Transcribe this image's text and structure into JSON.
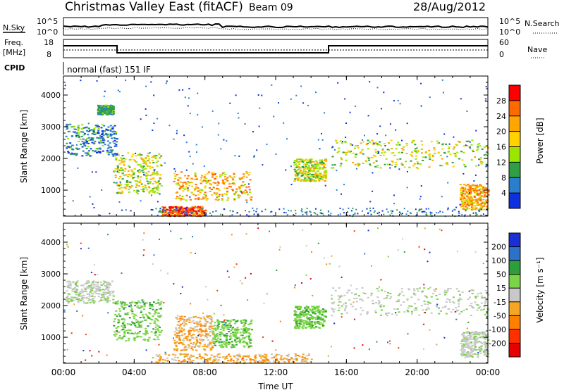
{
  "header": {
    "station": "Christmas Valley East (fitACF)",
    "beam": "Beam 09",
    "date": "28/Aug/2012"
  },
  "panels": {
    "nsky_label": "N.Sky",
    "nsky_ticks": [
      "10^5",
      "10^0"
    ],
    "nsearch_label": "N.Search",
    "nsearch_ticks": [
      "10^5",
      "10^0"
    ],
    "freq_label_1": "Freq.",
    "freq_label_2": "[MHz]",
    "freq_ticks": [
      "18",
      "8"
    ],
    "nave_label": "Nave",
    "nave_ticks": [
      "60",
      "0"
    ],
    "cpid_label": "CPID",
    "cpid_value": "normal (fast) 151 IF"
  },
  "colorbars": {
    "power": {
      "label": "Power [dB]",
      "ticks": [
        "28",
        "24",
        "20",
        "16",
        "12",
        "8",
        "4"
      ],
      "colors": [
        "#ff0000",
        "#ff6a00",
        "#ffa600",
        "#ffd200",
        "#9be600",
        "#2f9e44",
        "#2a7fcc",
        "#1030e0"
      ]
    },
    "velocity": {
      "label": "Velocity [m s⁻¹]",
      "ticks": [
        "200",
        "100",
        "50",
        "15",
        "-15",
        "-50",
        "-100",
        "-200"
      ],
      "colors": [
        "#1a2fd6",
        "#2c72c8",
        "#2e9e3a",
        "#7bd445",
        "#c8c8c8",
        "#f5a623",
        "#ff7f00",
        "#ff3000",
        "#e60000"
      ]
    }
  },
  "chart_data": [
    {
      "type": "heatmap",
      "name_hint": "backscatter power",
      "xlabel": "Time UT",
      "ylabel": "Slant Range [km]",
      "x_ticks": [
        "00:00",
        "04:00",
        "08:00",
        "12:00",
        "16:00",
        "20:00",
        "00:00"
      ],
      "xlim_hours": [
        0,
        24
      ],
      "y_ticks": [
        1000,
        2000,
        3000,
        4000
      ],
      "ylim_km": [
        180,
        4600
      ],
      "regions": [
        {
          "t0": 0.1,
          "t1": 3.0,
          "r0": 2100,
          "r1": 3100,
          "level": "low-mid"
        },
        {
          "t0": 1.9,
          "t1": 2.8,
          "r0": 3400,
          "r1": 3700,
          "level": "mid"
        },
        {
          "t0": 2.8,
          "t1": 5.5,
          "r0": 900,
          "r1": 2200,
          "level": "mid-high"
        },
        {
          "t0": 6.2,
          "t1": 10.6,
          "r0": 700,
          "r1": 1600,
          "level": "high"
        },
        {
          "t0": 5.5,
          "t1": 8.0,
          "r0": 200,
          "r1": 500,
          "level": "very-high"
        },
        {
          "t0": 13.0,
          "t1": 14.8,
          "r0": 1300,
          "r1": 2000,
          "level": "mid-high"
        },
        {
          "t0": 15.1,
          "t1": 24.0,
          "r0": 1700,
          "r1": 2600,
          "level": "mid-high"
        },
        {
          "t0": 22.4,
          "t1": 24.0,
          "r0": 400,
          "r1": 1200,
          "level": "high"
        }
      ]
    },
    {
      "type": "heatmap",
      "name_hint": "line-of-sight velocity",
      "xlabel": "Time UT",
      "ylabel": "Slant Range [km]",
      "x_ticks": [
        "00:00",
        "04:00",
        "08:00",
        "12:00",
        "16:00",
        "20:00",
        "00:00"
      ],
      "xlim_hours": [
        0,
        24
      ],
      "y_ticks": [
        1000,
        2000,
        3000,
        4000
      ],
      "ylim_km": [
        180,
        4600
      ],
      "regions": [
        {
          "t0": 0.1,
          "t1": 2.8,
          "r0": 2100,
          "r1": 2800,
          "velocity": "near zero"
        },
        {
          "t0": 2.8,
          "t1": 5.5,
          "r0": 900,
          "r1": 2200,
          "velocity": "positive 15-50"
        },
        {
          "t0": 6.2,
          "t1": 8.4,
          "r0": 600,
          "r1": 1700,
          "velocity": "negative -15 to -50"
        },
        {
          "t0": 8.4,
          "t1": 10.6,
          "r0": 700,
          "r1": 1600,
          "velocity": "positive 15-50"
        },
        {
          "t0": 13.0,
          "t1": 14.8,
          "r0": 1300,
          "r1": 2000,
          "velocity": "positive 15-50"
        },
        {
          "t0": 15.1,
          "t1": 24.0,
          "r0": 1700,
          "r1": 2600,
          "velocity": "near zero"
        },
        {
          "t0": 5.0,
          "t1": 14.0,
          "r0": 200,
          "r1": 500,
          "velocity": "negative -15 to -50"
        },
        {
          "t0": 22.4,
          "t1": 24.0,
          "r0": 400,
          "r1": 1200,
          "velocity": "near zero"
        }
      ]
    }
  ]
}
